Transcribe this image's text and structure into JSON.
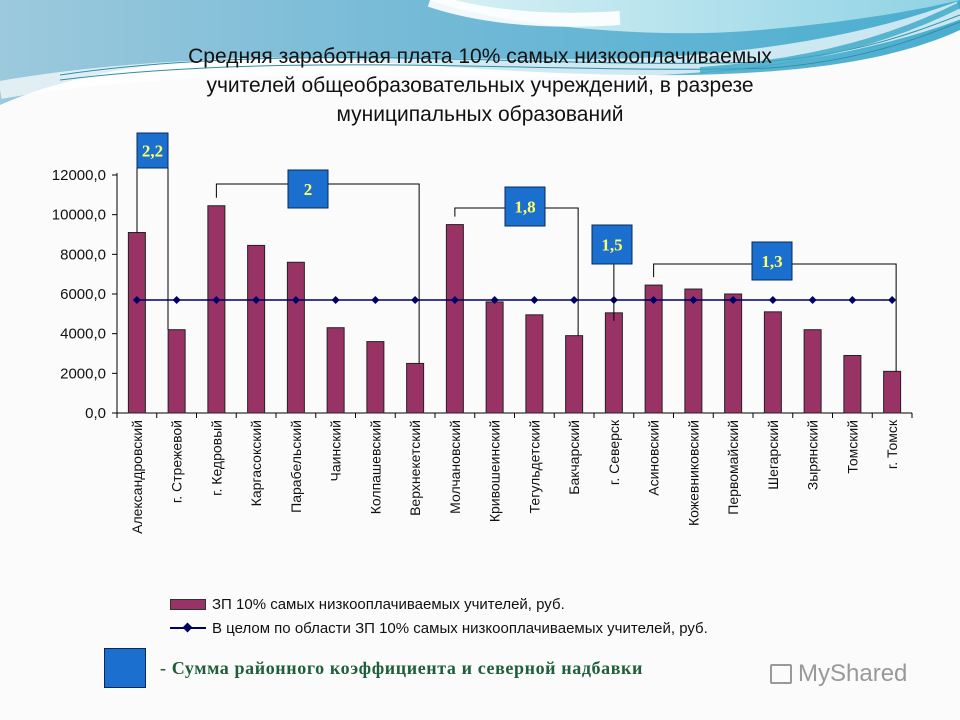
{
  "slide": {
    "title_lines": [
      "Средняя заработная плата 10% самых низкооплачиваемых",
      "учителей общеобразовательных учреждений, в разрезе",
      "муниципальных образований"
    ],
    "footer_note": "- Сумма районного коэффициента и северной надбавки",
    "watermark": "MyShared"
  },
  "colors": {
    "bar": "#993366",
    "line": "#000066",
    "coef_box": "#1a6fcf",
    "coef_text": "#ffff66",
    "footer_text": "#1e5e3a"
  },
  "legend": {
    "bar_label": "ЗП 10% самых низкооплачиваемых учителей, руб.",
    "line_label": "В целом по области ЗП 10% самых низкооплачиваемых учителей, руб."
  },
  "coefficient_groups": [
    {
      "label": "2,2",
      "from": 0,
      "to": 1
    },
    {
      "label": "2",
      "from": 2,
      "to": 7
    },
    {
      "label": "1,8",
      "from": 8,
      "to": 11
    },
    {
      "label": "1,5",
      "from": 12,
      "to": 12
    },
    {
      "label": "1,3",
      "from": 13,
      "to": 19
    }
  ],
  "chart_data": {
    "type": "bar",
    "title": "Средняя заработная плата 10% самых низкооплачиваемых учителей общеобразовательных учреждений, в разрезе муниципальных образований",
    "xlabel": "",
    "ylabel": "",
    "ylim": [
      0,
      12000
    ],
    "yticks": [
      "0,0",
      "2000,0",
      "4000,0",
      "6000,0",
      "8000,0",
      "10000,0",
      "12000,0"
    ],
    "grid": false,
    "legend_position": "bottom",
    "categories": [
      "Александровский",
      "г. Стрежевой",
      "г. Кедровый",
      "Каргасокский",
      "Парабельский",
      "Чаинский",
      "Колпашевский",
      "Верхнекетский",
      "Молчановский",
      "Кривошеинский",
      "Тегульдетский",
      "Бакчарский",
      "г. Северск",
      "Асиновский",
      "Кожевниковский",
      "Первомайский",
      "Шегарский",
      "Зырянский",
      "Томский",
      "г. Томск"
    ],
    "series": [
      {
        "name": "ЗП 10% самых низкооплачиваемых учителей, руб.",
        "type": "bar",
        "values": [
          9100,
          4200,
          10450,
          8450,
          7600,
          4300,
          3600,
          2500,
          9500,
          5600,
          4950,
          3900,
          5050,
          6450,
          6250,
          6000,
          5100,
          4200,
          2900,
          2100
        ]
      },
      {
        "name": "В целом по области ЗП 10% самых низкооплачиваемых учителей, руб.",
        "type": "line",
        "values": [
          5700,
          5700,
          5700,
          5700,
          5700,
          5700,
          5700,
          5700,
          5700,
          5700,
          5700,
          5700,
          5700,
          5700,
          5700,
          5700,
          5700,
          5700,
          5700,
          5700
        ]
      }
    ],
    "annotations": [
      {
        "text": "2,2",
        "categories": [
          "Александровский",
          "г. Стрежевой"
        ]
      },
      {
        "text": "2",
        "categories": [
          "г. Кедровый",
          "Верхнекетский"
        ]
      },
      {
        "text": "1,8",
        "categories": [
          "Молчановский",
          "Бакчарский"
        ]
      },
      {
        "text": "1,5",
        "categories": [
          "г. Северск"
        ]
      },
      {
        "text": "1,3",
        "categories": [
          "Асиновский",
          "г. Томск"
        ]
      }
    ]
  }
}
